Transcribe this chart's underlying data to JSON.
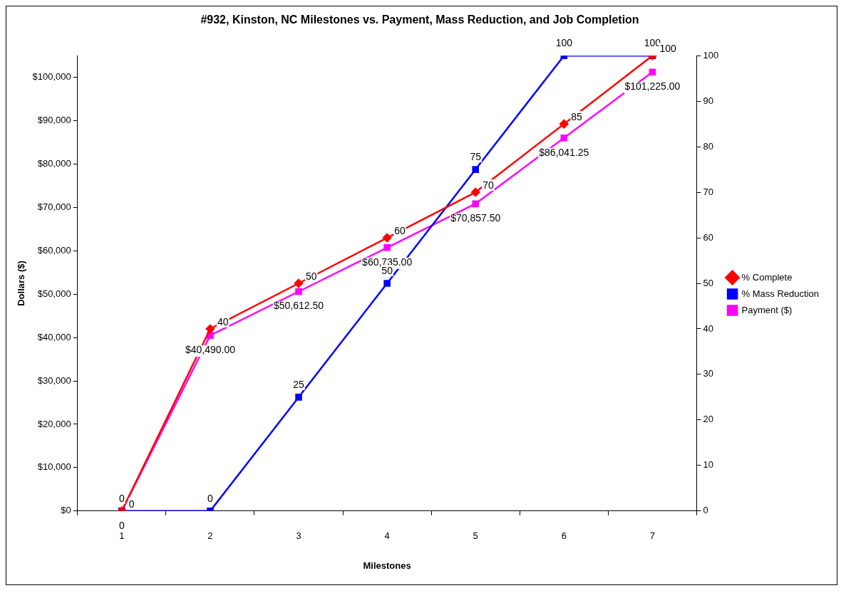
{
  "chart_data": {
    "type": "line",
    "title": "#932, Kinston, NC Milestones vs. Payment, Mass Reduction, and Job Completion",
    "xlabel": "Milestones",
    "ylabel": "Dollars ($)",
    "categories": [
      "1",
      "2",
      "3",
      "4",
      "5",
      "6",
      "7"
    ],
    "series": [
      {
        "name": "Payment ($)",
        "color": "#ff00ff",
        "marker": "square",
        "values": [
          0,
          40490,
          50612.5,
          60735,
          70857.5,
          86041.25,
          101225
        ],
        "value_labels": [
          "0",
          "$40,490.00",
          "$50,612.50",
          "$60,735.00",
          "$70,857.50",
          "$86,041.25",
          "$101,225.00"
        ]
      },
      {
        "name": "% Mass Reduction",
        "color": "#0000ff",
        "marker": "square",
        "axis": "y2",
        "values": [
          0,
          0,
          25,
          50,
          75,
          100,
          100
        ],
        "value_labels": [
          "0",
          "0",
          "25",
          "50",
          "75",
          "100",
          "100"
        ]
      },
      {
        "name": "% Complete",
        "color": "#ff0000",
        "marker": "diamond",
        "axis": "y2",
        "values": [
          0,
          40,
          50,
          60,
          70,
          85,
          100
        ],
        "value_labels": [
          "0",
          "40",
          "50",
          "60",
          "70",
          "85",
          "100"
        ]
      }
    ],
    "ylim": [
      0,
      105000
    ],
    "yticks": [
      {
        "value": 0,
        "label": "$0"
      },
      {
        "value": 10000,
        "label": "$10,000"
      },
      {
        "value": 20000,
        "label": "$20,000"
      },
      {
        "value": 30000,
        "label": "$30,000"
      },
      {
        "value": 40000,
        "label": "$40,000"
      },
      {
        "value": 50000,
        "label": "$50,000"
      },
      {
        "value": 60000,
        "label": "$60,000"
      },
      {
        "value": 70000,
        "label": "$70,000"
      },
      {
        "value": 80000,
        "label": "$80,000"
      },
      {
        "value": 90000,
        "label": "$90,000"
      },
      {
        "value": 100000,
        "label": "$100,000"
      }
    ],
    "y2lim": [
      0,
      100
    ],
    "y2ticks": [
      0,
      10,
      20,
      30,
      40,
      50,
      60,
      70,
      80,
      90,
      100
    ],
    "legend": "right",
    "grid": false,
    "line_style": "solid"
  }
}
